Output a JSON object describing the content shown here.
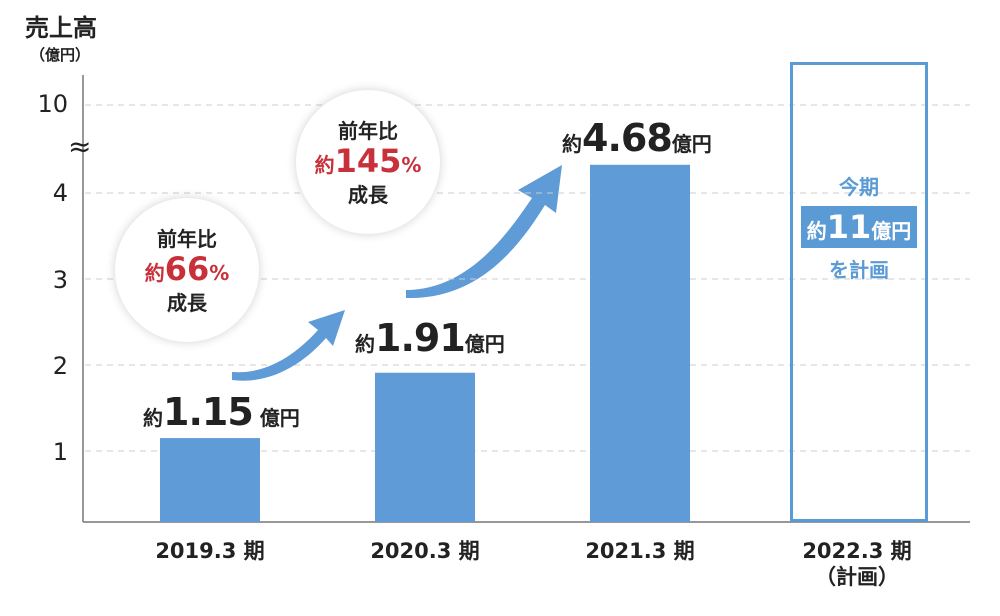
{
  "chart_data": {
    "type": "bar",
    "title": "売上高",
    "ylabel": "売上高",
    "yunit": "（億円）",
    "yticks": [
      "1",
      "2",
      "3",
      "4",
      "10"
    ],
    "axis_break": "≈",
    "ylim": [
      0,
      10
    ],
    "categories": [
      "2019.3 期",
      "2020.3 期",
      "2021.3 期",
      "2022.3 期"
    ],
    "category_notes": [
      "",
      "",
      "",
      "（計画）"
    ],
    "values": [
      1.15,
      1.91,
      4.68,
      11
    ],
    "planned": [
      false,
      false,
      false,
      true
    ],
    "data_labels": [
      {
        "prefix": "約",
        "value": "1.15",
        "unit": "億円"
      },
      {
        "prefix": "約",
        "value": "1.91",
        "unit": "億円"
      },
      {
        "prefix": "約",
        "value": "4.68",
        "unit": "億円"
      }
    ],
    "plan_label": {
      "top": "今期",
      "prefix": "約",
      "value": "11",
      "unit": "億円",
      "bottom": "を計画"
    },
    "annotations": [
      {
        "line1": "前年比",
        "prefix": "約",
        "value": "66",
        "unit": "%",
        "line3": "成長"
      },
      {
        "line1": "前年比",
        "prefix": "約",
        "value": "145",
        "unit": "%",
        "line3": "成長"
      }
    ],
    "colors": {
      "bar": "#5f9bd6",
      "growth": "#c8303a",
      "grid": "#cccccc"
    }
  }
}
